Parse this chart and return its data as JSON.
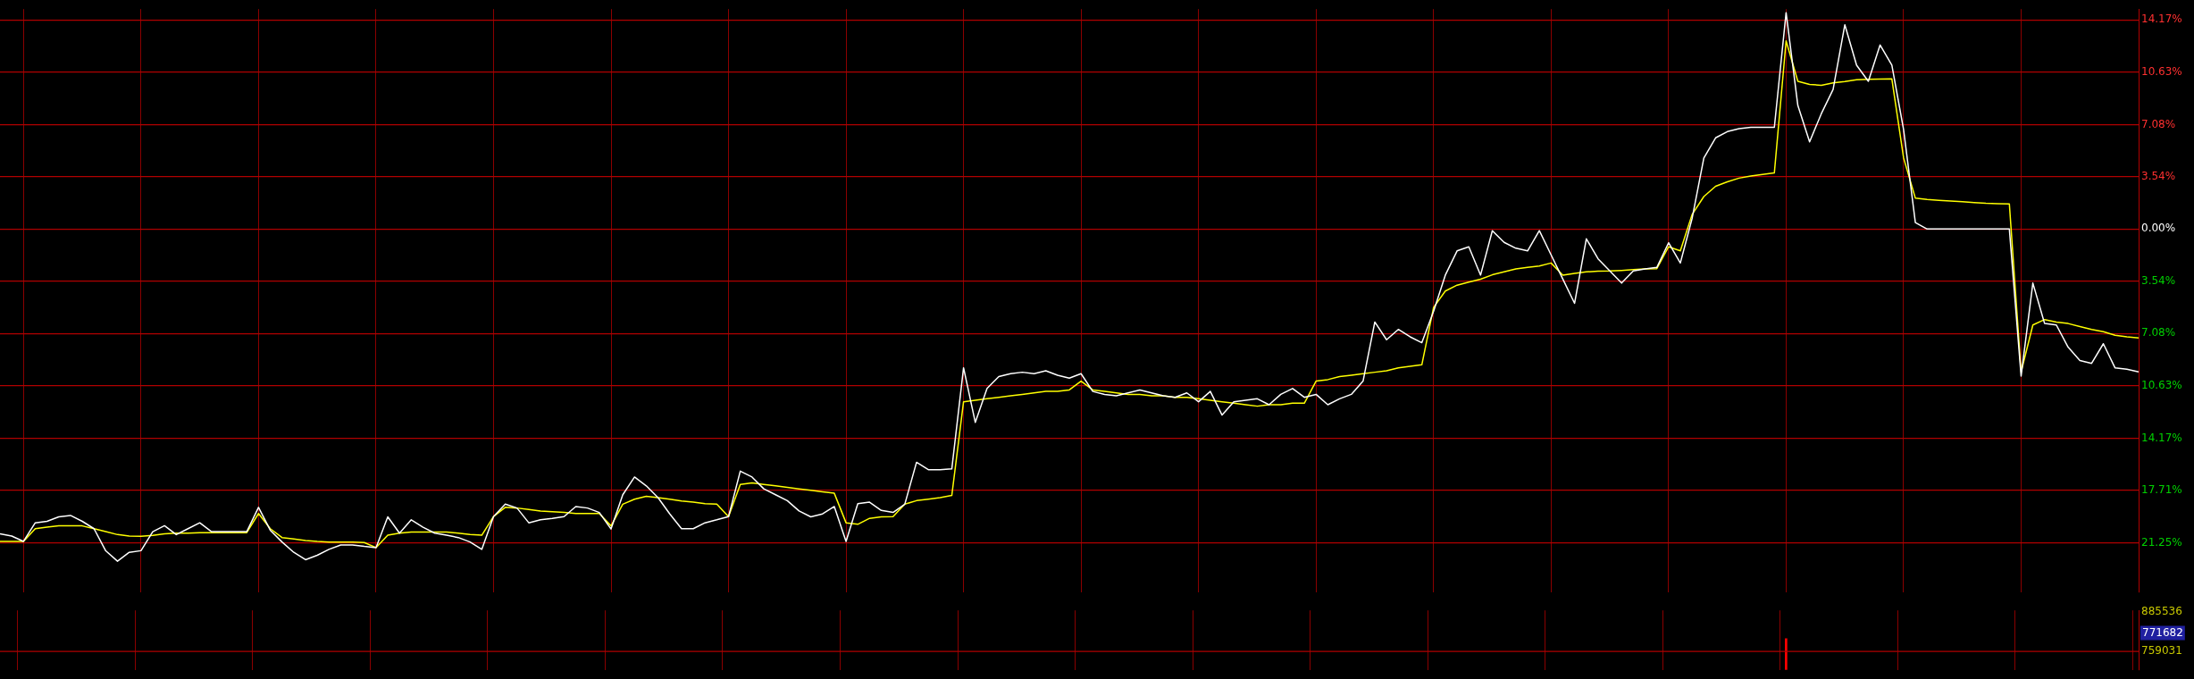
{
  "chart_data": [
    {
      "type": "line",
      "categories": [
        null,
        null,
        null,
        null,
        null,
        null,
        null,
        null,
        null,
        null,
        null,
        null,
        null,
        null,
        null,
        null,
        null,
        null,
        null,
        null,
        null,
        null,
        null,
        null,
        null,
        null,
        null,
        null,
        null,
        null,
        null,
        null,
        null,
        null,
        null,
        null,
        null,
        null,
        null,
        null,
        null,
        null,
        null,
        null,
        null,
        null,
        null,
        null,
        null,
        null,
        null,
        null,
        null,
        null,
        null,
        null,
        null,
        null,
        null,
        null,
        null,
        null,
        null,
        null,
        null,
        null,
        null,
        null,
        null,
        null,
        null,
        null,
        null,
        null,
        null,
        null,
        null,
        null,
        null,
        null,
        null,
        null,
        null,
        null,
        null,
        null,
        null,
        null,
        null,
        null,
        null,
        null,
        null,
        null,
        null,
        null,
        null,
        null,
        null,
        null,
        null,
        null,
        null,
        null,
        null,
        null,
        null,
        null,
        null,
        null,
        null,
        null,
        null,
        null,
        null,
        null,
        null,
        null,
        null,
        null,
        null,
        null,
        null,
        null,
        null,
        null,
        null,
        null,
        null,
        null,
        null,
        null,
        null,
        null,
        null,
        null,
        null,
        null,
        null,
        null,
        null,
        null,
        null,
        null,
        null,
        null,
        null,
        null,
        null,
        null,
        null,
        null,
        null,
        null,
        null,
        null,
        null,
        null,
        null,
        null,
        null,
        null,
        null,
        null,
        null,
        null,
        null,
        null,
        null,
        null,
        null,
        null,
        null,
        null,
        null,
        null,
        null,
        null,
        null,
        null,
        null,
        null,
        null
      ],
      "ylim": [
        -24.6,
        14.9
      ],
      "yticks": [
        {
          "value": 14.17,
          "label": "14.17%"
        },
        {
          "value": 10.63,
          "label": "10.63%"
        },
        {
          "value": 7.08,
          "label": "7.08%"
        },
        {
          "value": 3.54,
          "label": "3.54%"
        },
        {
          "value": 0,
          "label": "0.00%"
        },
        {
          "value": -3.54,
          "label": "3.54%"
        },
        {
          "value": -7.08,
          "label": "7.08%"
        },
        {
          "value": -10.63,
          "label": "10.63%"
        },
        {
          "value": -14.17,
          "label": "14.17%"
        },
        {
          "value": -17.71,
          "label": "17.71%"
        },
        {
          "value": -21.25,
          "label": "21.25%"
        }
      ],
      "grid": true,
      "legend": false,
      "tick_labels": "y",
      "marker": "none",
      "line_style": "solid",
      "series": [
        {
          "color": "#ffffff",
          "values": [
            -20.65,
            -20.8,
            -21.16,
            -19.9,
            -19.8,
            -19.5,
            -19.4,
            -19.8,
            -20.3,
            -21.8,
            -22.5,
            -21.9,
            -21.79,
            -20.5,
            -20.1,
            -20.7,
            -20.3,
            -19.9,
            -20.5,
            -20.5,
            -20.5,
            -20.5,
            -18.85,
            -20.4,
            -21.2,
            -21.9,
            -22.4,
            -22.1,
            -21.7,
            -21.4,
            -21.4,
            -21.5,
            -21.58,
            -19.5,
            -20.6,
            -19.7,
            -20.2,
            -20.6,
            -20.74,
            -20.9,
            -21.2,
            -21.7,
            -19.48,
            -18.64,
            -18.9,
            -19.9,
            -19.7,
            -19.6,
            -19.48,
            -18.8,
            -18.9,
            -19.2,
            -20.32,
            -18.0,
            -16.8,
            -17.4,
            -18.2,
            -19.3,
            -20.3,
            -20.3,
            -19.9,
            -19.7,
            -19.48,
            -16.4,
            -16.8,
            -17.6,
            -18.0,
            -18.4,
            -19.1,
            -19.5,
            -19.3,
            -18.8,
            -21.16,
            -18.6,
            -18.5,
            -19.06,
            -19.2,
            -18.64,
            -15.8,
            -16.3,
            -16.3,
            -16.25,
            -9.4,
            -13.1,
            -10.8,
            -10.0,
            -9.8,
            -9.7,
            -9.8,
            -9.6,
            -9.9,
            -10.1,
            -9.8,
            -11.0,
            -11.2,
            -11.3,
            -11.1,
            -10.9,
            -11.1,
            -11.3,
            -11.4,
            -11.1,
            -11.7,
            -11.0,
            -12.6,
            -11.7,
            -11.6,
            -11.5,
            -11.9,
            -11.2,
            -10.8,
            -11.4,
            -11.2,
            -11.9,
            -11.5,
            -11.2,
            -10.3,
            -6.3,
            -7.5,
            -6.8,
            -7.3,
            -7.7,
            -5.58,
            -3.12,
            -1.48,
            -1.2,
            -3.12,
            -0.11,
            -0.9,
            -1.3,
            -1.48,
            -0.11,
            -1.75,
            -3.39,
            -5.03,
            -0.66,
            -2.02,
            -2.84,
            -3.66,
            -2.84,
            -2.7,
            -2.6,
            -0.93,
            -2.3,
            0.71,
            4.81,
            6.18,
            6.6,
            6.8,
            6.89,
            6.89,
            6.89,
            14.66,
            8.37,
            5.91,
            7.82,
            9.46,
            13.84,
            11.1,
            10.01,
            12.47,
            11.1,
            6.73,
            0.44,
            0,
            0,
            0,
            0,
            0,
            0,
            0,
            0,
            -9.96,
            -3.66,
            -6.4,
            -6.5,
            -8.0,
            -8.9,
            -9.1,
            -7.77,
            -9.41,
            -9.5,
            -9.68
          ]
        },
        {
          "color": "#ffff00",
          "values": [
            -21.16,
            -21.16,
            -21.16,
            -20.3,
            -20.2,
            -20.11,
            -20.11,
            -20.11,
            -20.3,
            -20.5,
            -20.7,
            -20.8,
            -20.82,
            -20.75,
            -20.65,
            -20.6,
            -20.6,
            -20.57,
            -20.57,
            -20.57,
            -20.57,
            -20.57,
            -19.27,
            -20.3,
            -20.9,
            -21.0,
            -21.1,
            -21.16,
            -21.2,
            -21.2,
            -21.2,
            -21.24,
            -21.58,
            -20.74,
            -20.6,
            -20.53,
            -20.53,
            -20.53,
            -20.53,
            -20.6,
            -20.7,
            -20.74,
            -19.48,
            -18.85,
            -18.9,
            -19.0,
            -19.1,
            -19.15,
            -19.2,
            -19.27,
            -19.27,
            -19.27,
            -20.11,
            -18.64,
            -18.3,
            -18.1,
            -18.2,
            -18.3,
            -18.43,
            -18.5,
            -18.6,
            -18.64,
            -19.48,
            -17.3,
            -17.2,
            -17.3,
            -17.4,
            -17.5,
            -17.6,
            -17.7,
            -17.8,
            -17.9,
            -19.9,
            -20.0,
            -19.6,
            -19.5,
            -19.48,
            -18.64,
            -18.4,
            -18.3,
            -18.2,
            -18.05,
            -11.7,
            -11.6,
            -11.5,
            -11.4,
            -11.3,
            -11.2,
            -11.1,
            -11.0,
            -11.0,
            -10.9,
            -10.3,
            -10.9,
            -11.0,
            -11.1,
            -11.2,
            -11.2,
            -11.3,
            -11.3,
            -11.4,
            -11.4,
            -11.5,
            -11.6,
            -11.7,
            -11.8,
            -11.9,
            -12.0,
            -11.9,
            -11.9,
            -11.8,
            -11.8,
            -10.3,
            -10.2,
            -10.0,
            -9.9,
            -9.8,
            -9.7,
            -9.6,
            -9.4,
            -9.3,
            -9.2,
            -5.31,
            -4.2,
            -3.8,
            -3.6,
            -3.4,
            -3.1,
            -2.9,
            -2.7,
            -2.6,
            -2.5,
            -2.3,
            -3.12,
            -3.0,
            -2.9,
            -2.85,
            -2.84,
            -2.8,
            -2.75,
            -2.7,
            -2.68,
            -1.2,
            -1.48,
            0.98,
            2.2,
            2.9,
            3.2,
            3.45,
            3.6,
            3.7,
            3.8,
            12.75,
            10.01,
            9.8,
            9.74,
            9.9,
            10.0,
            10.12,
            10.15,
            10.16,
            10.17,
            4.81,
            2.1,
            2.0,
            1.95,
            1.9,
            1.85,
            1.8,
            1.75,
            1.72,
            1.7,
            -9.68,
            -6.5,
            -6.13,
            -6.3,
            -6.4,
            -6.6,
            -6.8,
            -6.95,
            -7.2,
            -7.3,
            -7.38
          ]
        }
      ]
    },
    {
      "type": "bar",
      "categories": [
        null,
        null,
        null,
        null,
        null,
        null,
        null,
        null,
        null,
        null,
        null,
        null,
        null,
        null,
        null,
        null,
        null,
        null,
        null,
        null,
        null,
        null,
        null,
        null,
        null,
        null,
        null,
        null,
        null,
        null,
        null,
        null,
        null,
        null,
        null,
        null,
        null,
        null,
        null,
        null,
        null,
        null,
        null,
        null,
        null,
        null,
        null,
        null,
        null,
        null,
        null,
        null,
        null,
        null,
        null,
        null,
        null,
        null,
        null,
        null,
        null,
        null,
        null,
        null,
        null,
        null,
        null,
        null,
        null,
        null,
        null,
        null,
        null,
        null,
        null,
        null,
        null,
        null,
        null,
        null,
        null,
        null,
        null,
        null,
        null,
        null,
        null,
        null,
        null,
        null,
        null,
        null,
        null,
        null,
        null,
        null,
        null,
        null,
        null,
        null,
        null,
        null,
        null,
        null,
        null,
        null,
        null,
        null,
        null,
        null,
        null,
        null,
        null,
        null,
        null,
        null,
        null,
        null,
        null,
        null,
        null,
        null,
        null,
        null,
        null,
        null,
        null,
        null,
        null,
        null,
        null,
        null,
        null,
        null,
        null,
        null,
        null,
        null,
        null,
        null,
        null,
        null,
        null,
        null,
        null,
        null,
        null,
        null,
        null,
        null,
        null,
        null,
        null,
        null,
        null,
        null,
        null,
        null,
        null,
        null,
        null,
        null,
        null,
        null,
        null,
        null,
        null,
        null,
        null,
        null,
        null,
        null,
        null,
        null,
        null,
        null,
        null,
        null,
        null,
        null,
        null,
        null,
        null
      ],
      "ylim": [
        700000,
        890000
      ],
      "yticks": [
        885536,
        759031
      ],
      "grid": "x",
      "ref_lines": [
        {
          "axis": "y",
          "value": 759031,
          "color": "#b00000"
        }
      ],
      "legend": false,
      "tick_labels": "y",
      "color": "#ff0000",
      "values": [
        null,
        null,
        null,
        null,
        null,
        null,
        null,
        null,
        null,
        null,
        null,
        null,
        null,
        null,
        null,
        null,
        null,
        null,
        null,
        null,
        null,
        null,
        null,
        null,
        null,
        null,
        null,
        null,
        null,
        null,
        null,
        null,
        null,
        null,
        null,
        null,
        null,
        null,
        null,
        null,
        null,
        null,
        null,
        null,
        null,
        null,
        null,
        null,
        null,
        null,
        null,
        null,
        null,
        null,
        null,
        null,
        null,
        null,
        null,
        null,
        null,
        null,
        null,
        null,
        null,
        null,
        null,
        null,
        null,
        null,
        null,
        null,
        null,
        null,
        null,
        null,
        null,
        null,
        null,
        null,
        null,
        null,
        null,
        null,
        null,
        null,
        null,
        null,
        null,
        null,
        null,
        null,
        null,
        null,
        null,
        null,
        null,
        null,
        null,
        null,
        null,
        null,
        null,
        null,
        null,
        null,
        null,
        null,
        null,
        null,
        null,
        null,
        null,
        null,
        null,
        null,
        null,
        null,
        null,
        null,
        null,
        null,
        null,
        null,
        null,
        null,
        null,
        null,
        null,
        null,
        null,
        null,
        null,
        null,
        null,
        null,
        null,
        null,
        null,
        null,
        null,
        null,
        null,
        null,
        null,
        null,
        null,
        null,
        null,
        null,
        null,
        null,
        800000,
        null,
        null,
        null,
        null,
        null,
        null,
        null,
        null,
        null,
        null,
        null,
        null,
        null,
        null,
        null,
        null,
        null,
        null,
        null,
        null,
        null,
        null,
        null,
        null,
        null,
        null,
        null,
        null,
        null,
        null
      ],
      "annotations": [
        "771682"
      ]
    }
  ]
}
